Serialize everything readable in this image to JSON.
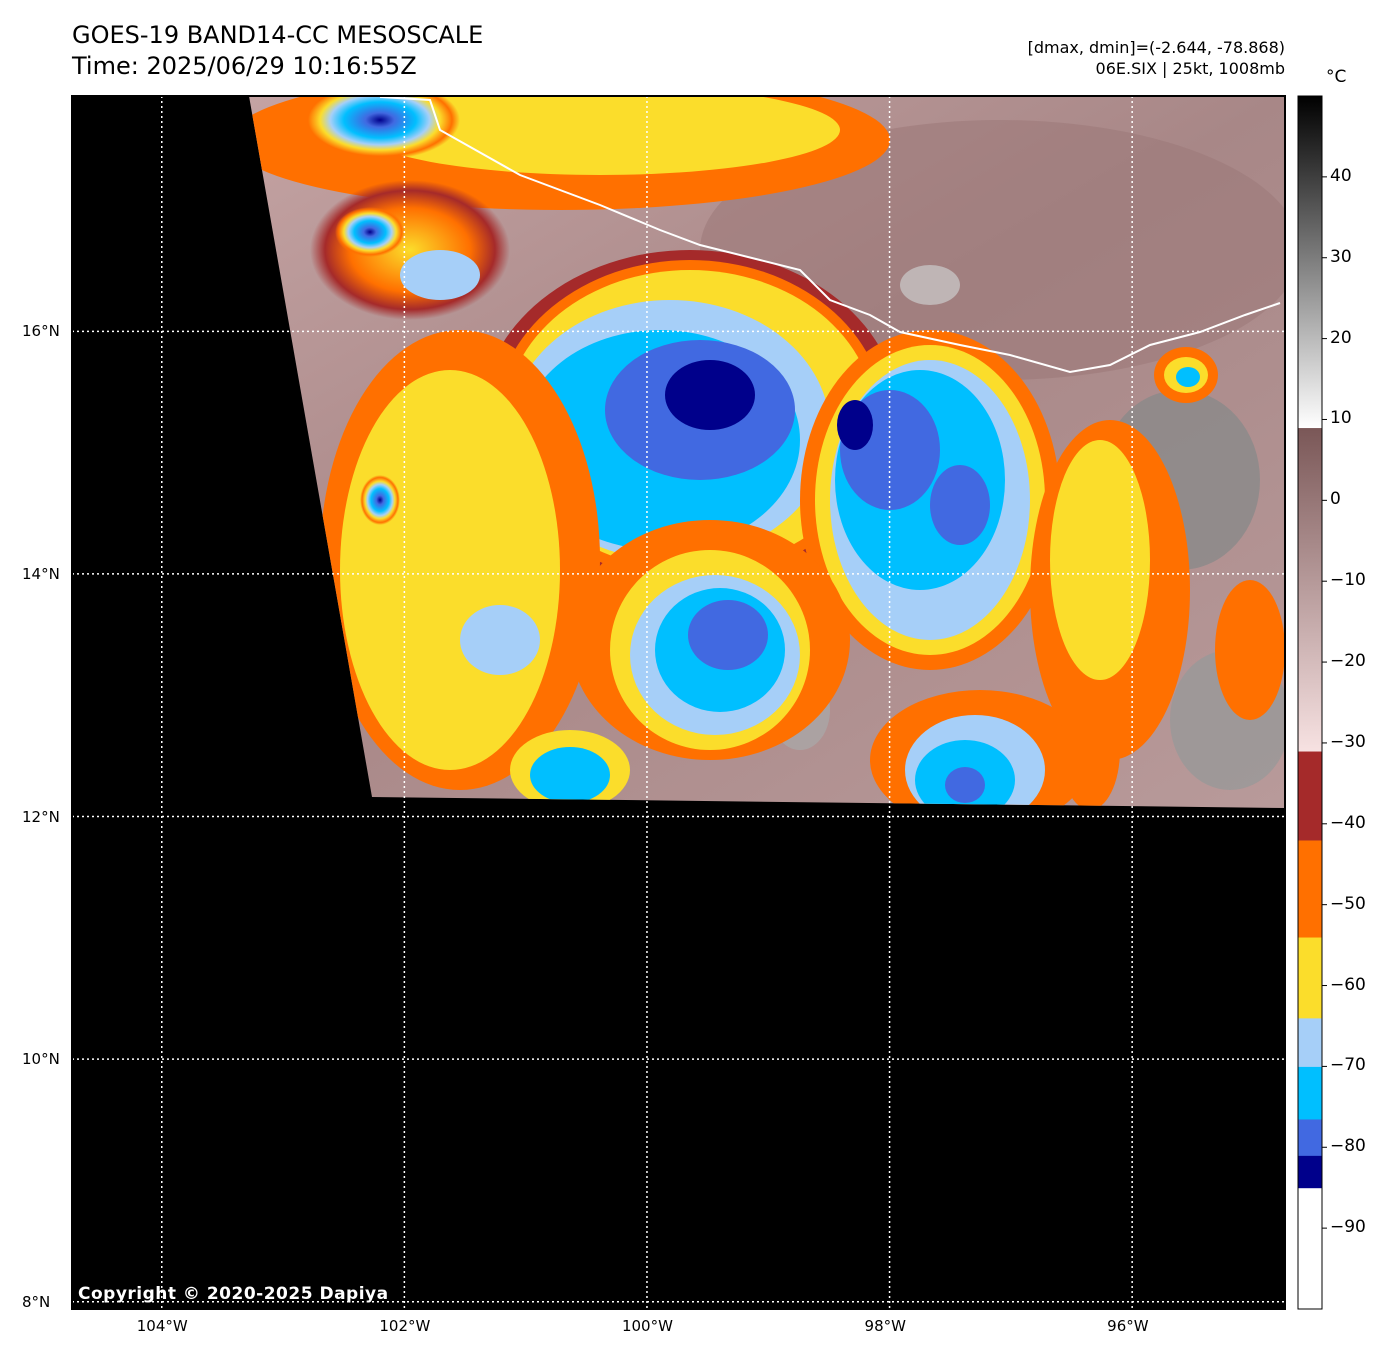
{
  "header": {
    "title_line1": "GOES-19 BAND14-CC MESOSCALE",
    "title_line2": "Time: 2025/06/29 10:16:55Z",
    "info_line1": "[dmax, dmin]=(-2.644, -78.868)",
    "info_line2": "06E.SIX | 25kt, 1008mb"
  },
  "map": {
    "lon_labels": [
      "104°W",
      "102°W",
      "100°W",
      "98°W",
      "96°W"
    ],
    "lat_labels": [
      "16°N",
      "14°N",
      "12°N",
      "10°N",
      "8°N"
    ],
    "lon_values": [
      -104,
      -102,
      -100,
      -98,
      -96
    ],
    "lat_values": [
      16,
      14,
      12,
      10,
      8
    ],
    "lon_range": [
      -104.74,
      -94.74
    ],
    "lat_range": [
      7.94,
      17.94
    ],
    "gridlines": "dotted white",
    "background_color": "#000000",
    "coastline_color": "#ffffff"
  },
  "colorbar": {
    "unit": "°C",
    "range": [
      -100,
      50
    ],
    "tick_labels": [
      "40",
      "30",
      "20",
      "10",
      "0",
      "−10",
      "−20",
      "−30",
      "−40",
      "−50",
      "−60",
      "−70",
      "−80",
      "−90"
    ],
    "tick_values": [
      40,
      30,
      20,
      10,
      0,
      -10,
      -20,
      -30,
      -40,
      -50,
      -60,
      -70,
      -80,
      -90
    ],
    "bands": [
      {
        "from": -100,
        "to": -85,
        "color": "#ffffff"
      },
      {
        "from": -85,
        "to": -81,
        "color": "#00008b"
      },
      {
        "from": -81,
        "to": -76.5,
        "color": "#4169e1"
      },
      {
        "from": -76.5,
        "to": -70,
        "color": "#00bfff"
      },
      {
        "from": -70,
        "to": -64,
        "color": "#a6cff8"
      },
      {
        "from": -64,
        "to": -54,
        "color": "#fbdd2b"
      },
      {
        "from": -54,
        "to": -42,
        "color": "#ff7000"
      },
      {
        "from": -42,
        "to": -31,
        "color": "#a52a2a"
      },
      {
        "from": -31,
        "to": 9,
        "color_low": "#f7e2e2",
        "color_high": "#7a5757"
      },
      {
        "from": 9,
        "to": 50,
        "color_low": "#ffffff",
        "color_high": "#000000"
      }
    ]
  },
  "footer": {
    "copyright": "Copyright © 2020-2025 Dapiya"
  }
}
